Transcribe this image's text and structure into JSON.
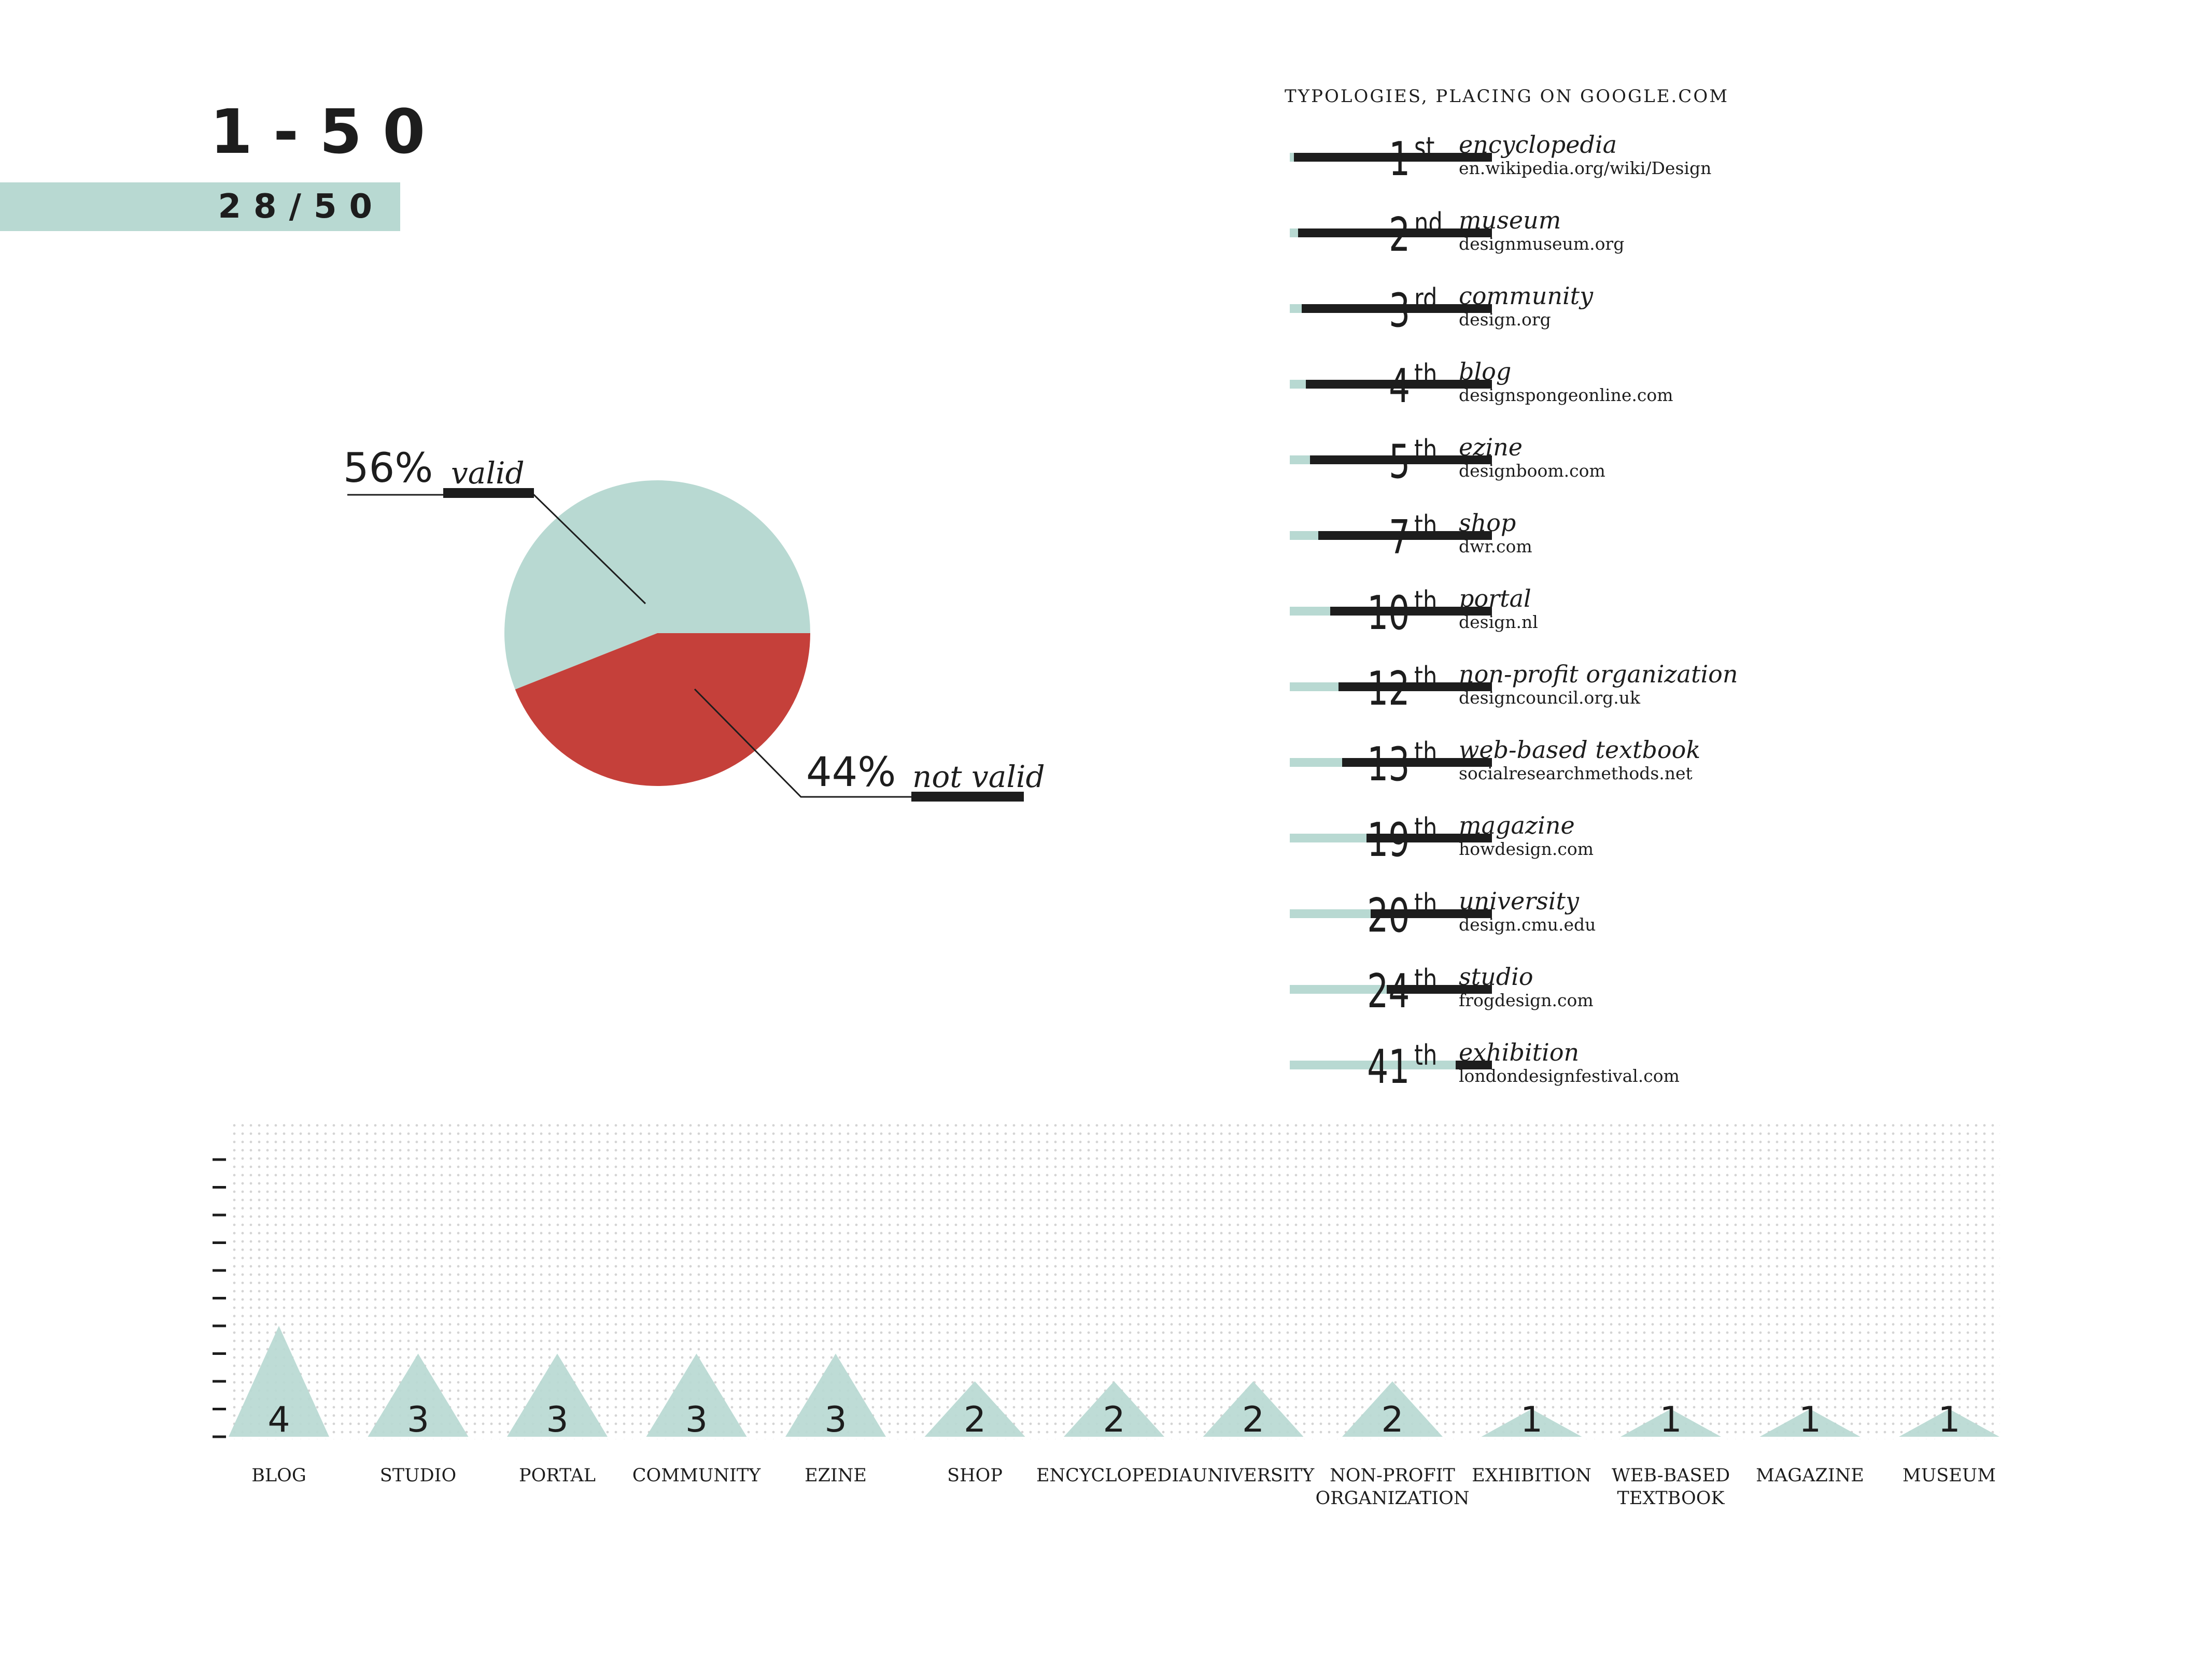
{
  "header": {
    "range": "1-50",
    "count": "28/50"
  },
  "colors": {
    "teal": "#b8d9d2",
    "red": "#c5403a",
    "ink": "#1d1d1d"
  },
  "chart_data": [
    {
      "type": "pie",
      "slices": [
        {
          "label": "valid",
          "percent_label": "56%",
          "value": 56,
          "color": "#b8d9d2"
        },
        {
          "label": "not valid",
          "percent_label": "44%",
          "value": 44,
          "color": "#c5403a"
        }
      ]
    },
    {
      "type": "bar",
      "title": "TYPOLOGIES, PLACING ON GOOGLE.COM",
      "scale_max": 50,
      "rows": [
        {
          "rank": 1,
          "rank_text": "1",
          "suffix": "st",
          "type": "encyclopedia",
          "url": "en.wikipedia.org/wiki/Design"
        },
        {
          "rank": 2,
          "rank_text": "2",
          "suffix": "nd",
          "type": "museum",
          "url": "designmuseum.org"
        },
        {
          "rank": 3,
          "rank_text": "3",
          "suffix": "rd",
          "type": "community",
          "url": "design.org"
        },
        {
          "rank": 4,
          "rank_text": "4",
          "suffix": "th",
          "type": "blog",
          "url": "designspongeonline.com"
        },
        {
          "rank": 5,
          "rank_text": "5",
          "suffix": "th",
          "type": "ezine",
          "url": "designboom.com"
        },
        {
          "rank": 7,
          "rank_text": "7",
          "suffix": "th",
          "type": "shop",
          "url": "dwr.com"
        },
        {
          "rank": 10,
          "rank_text": "10",
          "suffix": "th",
          "type": "portal",
          "url": "design.nl"
        },
        {
          "rank": 12,
          "rank_text": "12",
          "suffix": "th",
          "type": "non-profit organization",
          "url": "designcouncil.org.uk"
        },
        {
          "rank": 13,
          "rank_text": "13",
          "suffix": "th",
          "type": "web-based textbook",
          "url": "socialresearchmethods.net"
        },
        {
          "rank": 19,
          "rank_text": "19",
          "suffix": "th",
          "type": "magazine",
          "url": "howdesign.com"
        },
        {
          "rank": 20,
          "rank_text": "20",
          "suffix": "th",
          "type": "university",
          "url": "design.cmu.edu"
        },
        {
          "rank": 24,
          "rank_text": "24",
          "suffix": "th",
          "type": "studio",
          "url": "frogdesign.com"
        },
        {
          "rank": 41,
          "rank_text": "41",
          "suffix": "th",
          "type": "exhibition",
          "url": "londondesignfestival.com"
        }
      ]
    },
    {
      "type": "bar",
      "mark": "triangle",
      "ylim": [
        0,
        10
      ],
      "categories": [
        "BLOG",
        "STUDIO",
        "PORTAL",
        "COMMUNITY",
        "EZINE",
        "SHOP",
        "ENCYCLOPEDIA",
        "UNIVERSITY",
        "NON-PROFIT ORGANIZATION",
        "EXHIBITION",
        "WEB-BASED TEXTBOOK",
        "MAGAZINE",
        "MUSEUM"
      ],
      "category_lines": [
        [
          "BLOG"
        ],
        [
          "STUDIO"
        ],
        [
          "PORTAL"
        ],
        [
          "COMMUNITY"
        ],
        [
          "EZINE"
        ],
        [
          "SHOP"
        ],
        [
          "ENCYCLOPEDIA"
        ],
        [
          "UNIVERSITY"
        ],
        [
          "NON-PROFIT",
          "ORGANIZATION"
        ],
        [
          "EXHIBITION"
        ],
        [
          "WEB-BASED",
          "TEXTBOOK"
        ],
        [
          "MAGAZINE"
        ],
        [
          "MUSEUM"
        ]
      ],
      "values": [
        4,
        3,
        3,
        3,
        3,
        2,
        2,
        2,
        2,
        1,
        1,
        1,
        1
      ],
      "grid": "dotted"
    }
  ]
}
